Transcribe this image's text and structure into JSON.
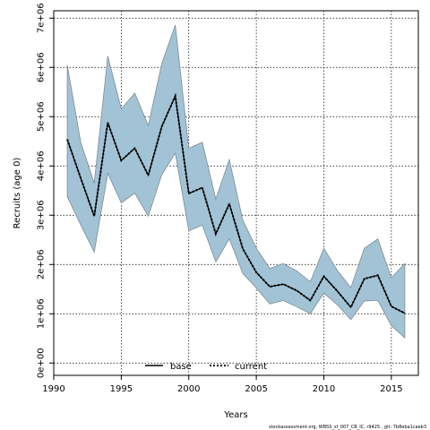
{
  "chart_data": {
    "type": "line",
    "xlabel": "Years",
    "ylabel": "Recruits (age 0)",
    "xlim": [
      1990,
      2017
    ],
    "ylim": [
      -250000,
      7150000
    ],
    "x_ticks": [
      1990,
      1995,
      2000,
      2005,
      2010,
      2015
    ],
    "y_ticks": [
      {
        "value": 0,
        "label": "0e+00"
      },
      {
        "value": 1000000,
        "label": "1e+06"
      },
      {
        "value": 2000000,
        "label": "2e+06"
      },
      {
        "value": 3000000,
        "label": "3e+06"
      },
      {
        "value": 4000000,
        "label": "4e+06"
      },
      {
        "value": 5000000,
        "label": "5e+06"
      },
      {
        "value": 6000000,
        "label": "6e+06"
      },
      {
        "value": 7000000,
        "label": "7e+06"
      }
    ],
    "grid": true,
    "legend_position": "bottom-center",
    "x": [
      1991,
      1992,
      1993,
      1994,
      1995,
      1996,
      1997,
      1998,
      1999,
      2000,
      2001,
      2002,
      2003,
      2004,
      2005,
      2006,
      2007,
      2008,
      2009,
      2010,
      2011,
      2012,
      2013,
      2014,
      2015,
      2016
    ],
    "band": {
      "color": "#a2c3d6",
      "edge_color": "#7f8c94",
      "upper": [
        6050000,
        4480000,
        3650000,
        6230000,
        5160000,
        5480000,
        4820000,
        6080000,
        6860000,
        4360000,
        4480000,
        3330000,
        4130000,
        2900000,
        2330000,
        1920000,
        2020000,
        1870000,
        1650000,
        2330000,
        1880000,
        1530000,
        2330000,
        2520000,
        1730000,
        2020000
      ],
      "lower": [
        3380000,
        2800000,
        2250000,
        3850000,
        3250000,
        3450000,
        2980000,
        3820000,
        4260000,
        2680000,
        2800000,
        2050000,
        2520000,
        1820000,
        1520000,
        1200000,
        1270000,
        1140000,
        1000000,
        1420000,
        1180000,
        880000,
        1260000,
        1270000,
        760000,
        510000
      ]
    },
    "series": [
      {
        "name": "base",
        "color": "#000000",
        "dash": "solid",
        "values": [
          4540000,
          3750000,
          2980000,
          4880000,
          4110000,
          4360000,
          3810000,
          4800000,
          5420000,
          3440000,
          3560000,
          2620000,
          3230000,
          2320000,
          1840000,
          1550000,
          1600000,
          1470000,
          1270000,
          1760000,
          1460000,
          1130000,
          1710000,
          1780000,
          1150000,
          1010000
        ]
      },
      {
        "name": "current",
        "color": "#000000",
        "dash": "dotted",
        "values": [
          4540000,
          3750000,
          2980000,
          4880000,
          4110000,
          4360000,
          3810000,
          4800000,
          5420000,
          3440000,
          3560000,
          2620000,
          3230000,
          2320000,
          1840000,
          1550000,
          1600000,
          1470000,
          1270000,
          1760000,
          1460000,
          1130000,
          1710000,
          1780000,
          1150000,
          1010000
        ]
      }
    ],
    "legend": [
      {
        "label": "base",
        "style": "solid"
      },
      {
        "label": "current",
        "style": "dotted",
        "color": "#000000"
      }
    ],
    "footer": "stockassessment.org, WBSS_sf_007_CB_IC, r9425 , git: 7b8eba1caeb3"
  }
}
